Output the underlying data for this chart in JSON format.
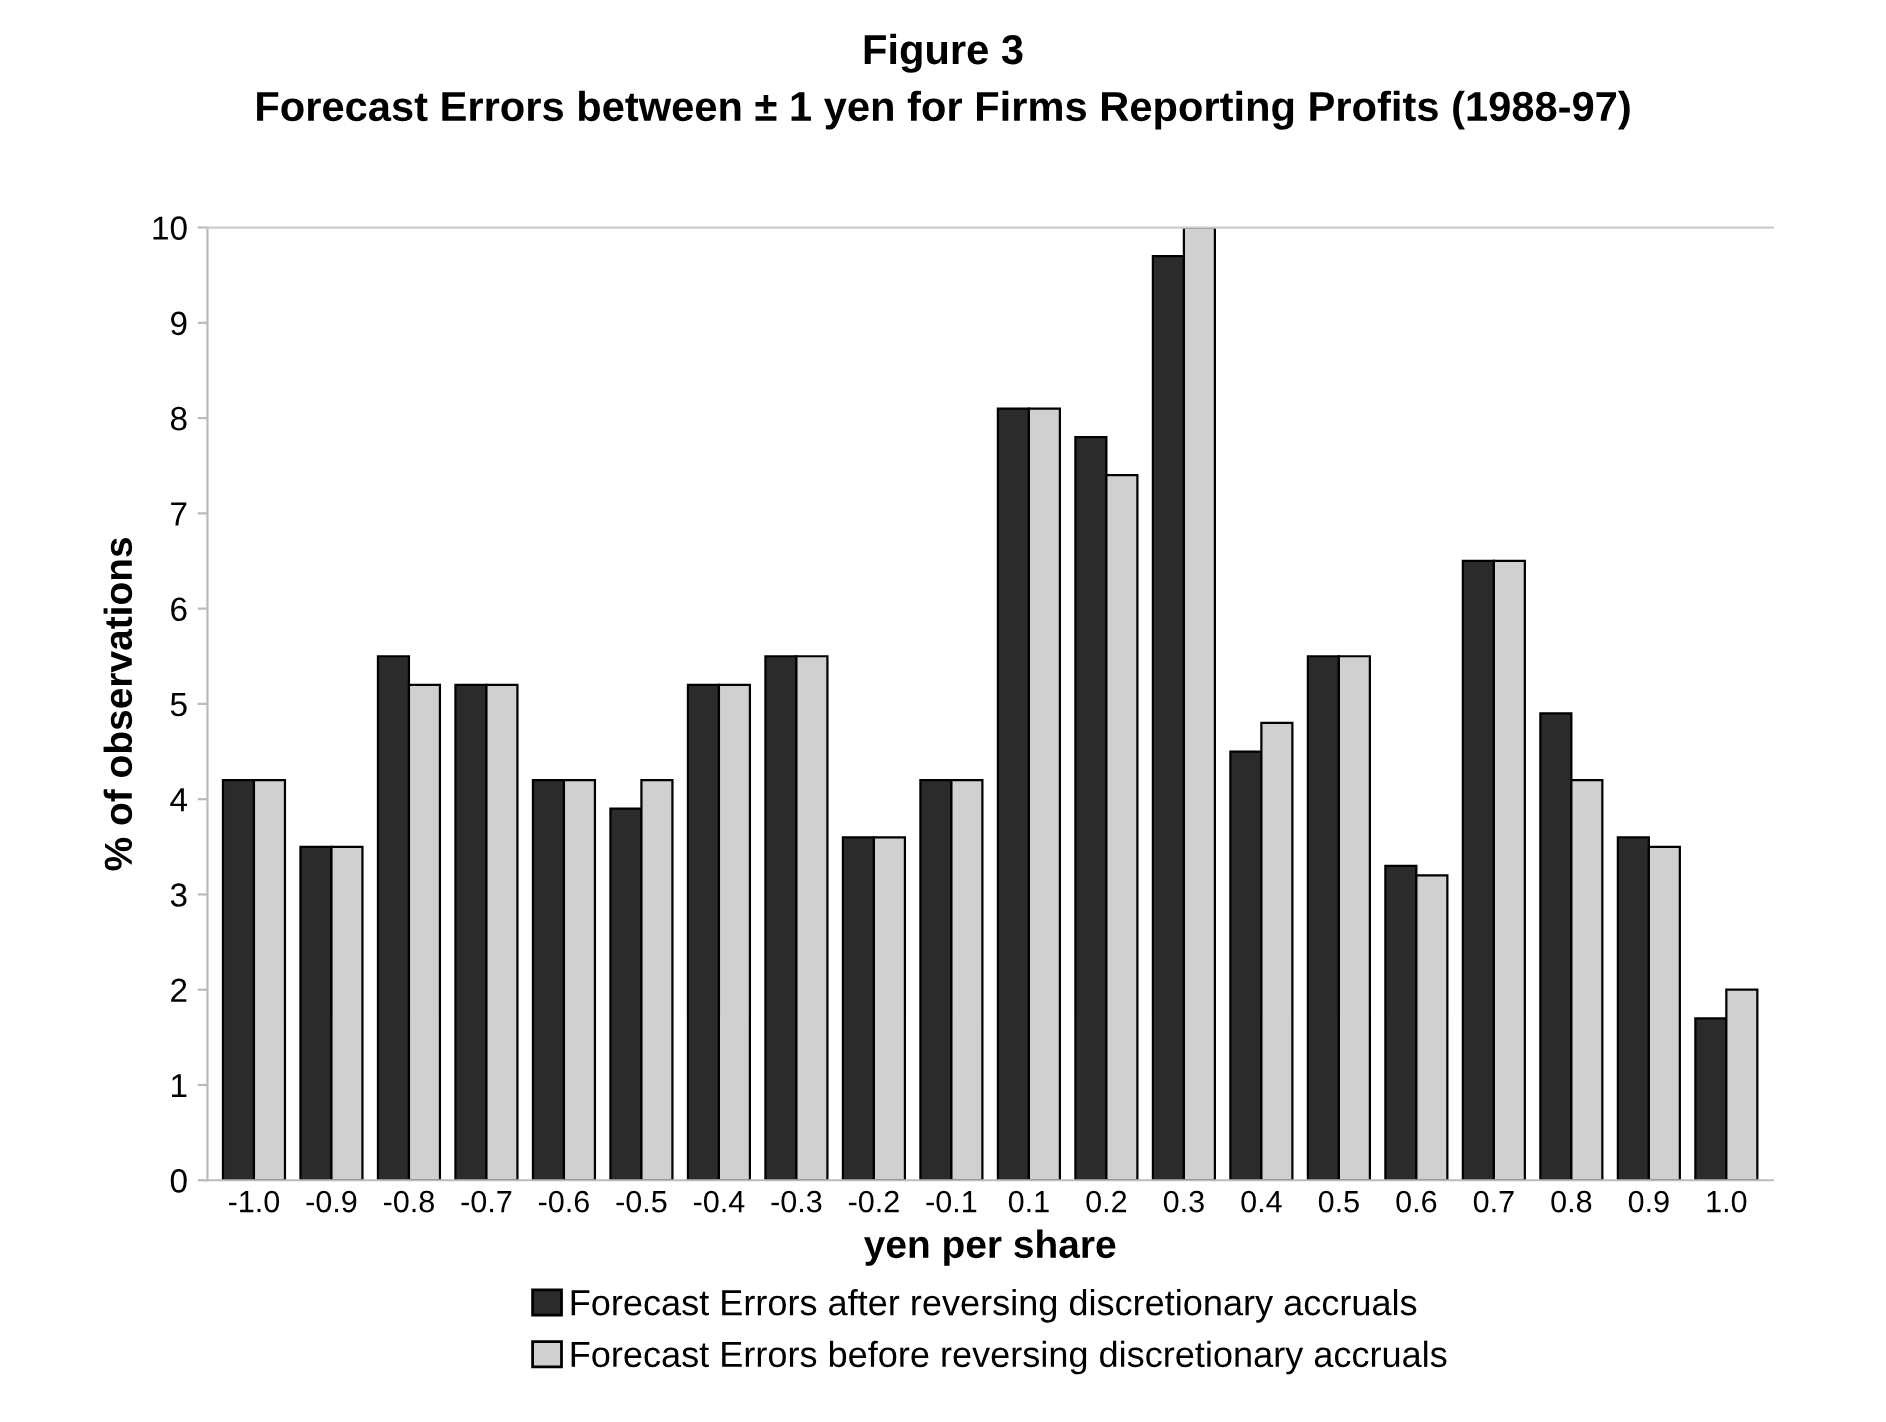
{
  "chart_data": {
    "type": "bar",
    "title": "Figure 3",
    "subtitle": "Forecast Errors between ± 1 yen for Firms Reporting Profits (1988-97)",
    "xlabel": "yen per share",
    "ylabel": "% of observations",
    "categories": [
      "-1.0",
      "-0.9",
      "-0.8",
      "-0.7",
      "-0.6",
      "-0.5",
      "-0.4",
      "-0.3",
      "-0.2",
      "-0.1",
      "0.1",
      "0.2",
      "0.3",
      "0.4",
      "0.5",
      "0.6",
      "0.7",
      "0.8",
      "0.9",
      "1.0"
    ],
    "series": [
      {
        "name": "Forecast Errors after reversing discretionary accruals",
        "color": "#2b2b2b",
        "values": [
          4.2,
          3.5,
          5.5,
          5.2,
          4.2,
          3.9,
          5.2,
          5.5,
          3.6,
          4.2,
          8.1,
          7.8,
          9.7,
          4.5,
          5.5,
          3.3,
          6.5,
          4.9,
          3.6,
          1.7
        ]
      },
      {
        "name": "Forecast Errors before reversing discretionary accruals",
        "color": "#d0d0d0",
        "values": [
          4.2,
          3.5,
          5.2,
          5.2,
          4.2,
          4.2,
          5.2,
          5.5,
          3.6,
          4.2,
          8.1,
          7.4,
          10.0,
          4.8,
          5.5,
          3.2,
          6.5,
          4.2,
          3.5,
          2.0
        ]
      }
    ],
    "ylim": [
      0,
      10
    ],
    "yticks": [
      0,
      1,
      2,
      3,
      4,
      5,
      6,
      7,
      8,
      9,
      10
    ],
    "legend": "bottom"
  }
}
